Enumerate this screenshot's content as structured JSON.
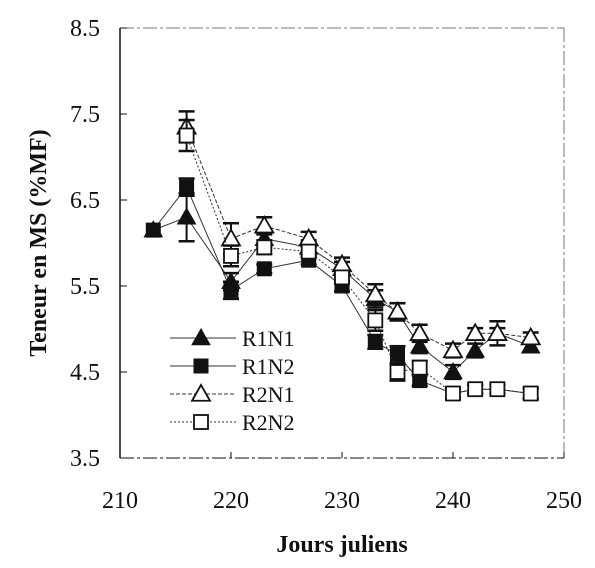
{
  "chart_data": {
    "type": "line",
    "xlabel": "Jours juliens",
    "ylabel": "Teneur en MS (%MF)",
    "xlim": [
      210,
      250
    ],
    "ylim": [
      3.5,
      8.5
    ],
    "xticks": [
      "210",
      "220",
      "230",
      "240",
      "250"
    ],
    "yticks": [
      "3.5",
      "4.5",
      "5.5",
      "6.5",
      "7.5",
      "8.5"
    ],
    "legend_position": "lower-left",
    "grid": false,
    "series": [
      {
        "name": "R1N1",
        "marker": "triangle-filled",
        "x": [
          213,
          216,
          220,
          223,
          227,
          230,
          233,
          235,
          237,
          240,
          242,
          244,
          247
        ],
        "y": [
          6.15,
          6.3,
          5.55,
          6.05,
          5.95,
          5.7,
          5.35,
          5.2,
          4.8,
          4.5,
          4.75,
          4.95,
          4.8
        ],
        "err": [
          0,
          0.28,
          0.1,
          0.1,
          0.08,
          0.08,
          0.1,
          0.1,
          0.08,
          0.08,
          0.08,
          0.14,
          0.06
        ]
      },
      {
        "name": "R1N2",
        "marker": "square-filled",
        "x": [
          213,
          216,
          220,
          223,
          227,
          230,
          233,
          235,
          237,
          240,
          242,
          244,
          247
        ],
        "y": [
          6.15,
          6.65,
          5.45,
          5.7,
          5.8,
          5.5,
          4.85,
          4.7,
          4.4,
          4.25,
          4.3,
          4.3,
          4.25
        ],
        "err": [
          0,
          0.1,
          0.1,
          0.05,
          0.05,
          0.06,
          0.08,
          0.1,
          0.06,
          0.06,
          0.05,
          0.05,
          0.06
        ]
      },
      {
        "name": "R2N1",
        "marker": "triangle-open",
        "x": [
          216,
          220,
          223,
          227,
          230,
          233,
          235,
          237,
          240,
          242,
          244,
          247
        ],
        "y": [
          7.35,
          6.05,
          6.2,
          6.05,
          5.75,
          5.4,
          5.2,
          4.95,
          4.75,
          4.95,
          4.95,
          4.9
        ],
        "err": [
          0.18,
          0.18,
          0.1,
          0.08,
          0.08,
          0.12,
          0.1,
          0.1,
          0.08,
          0.06,
          0.06,
          0.06
        ]
      },
      {
        "name": "R2N2",
        "marker": "square-open",
        "x": [
          216,
          220,
          223,
          227,
          230,
          233,
          235,
          237,
          240,
          242,
          244,
          247
        ],
        "y": [
          7.25,
          5.85,
          5.95,
          5.9,
          5.6,
          5.1,
          4.5,
          4.55,
          4.25,
          4.3,
          4.3,
          4.25
        ],
        "err": [
          0.18,
          0.12,
          0.08,
          0.06,
          0.06,
          0.12,
          0.1,
          0.08,
          0.06,
          0.05,
          0.05,
          0.06
        ]
      }
    ]
  }
}
